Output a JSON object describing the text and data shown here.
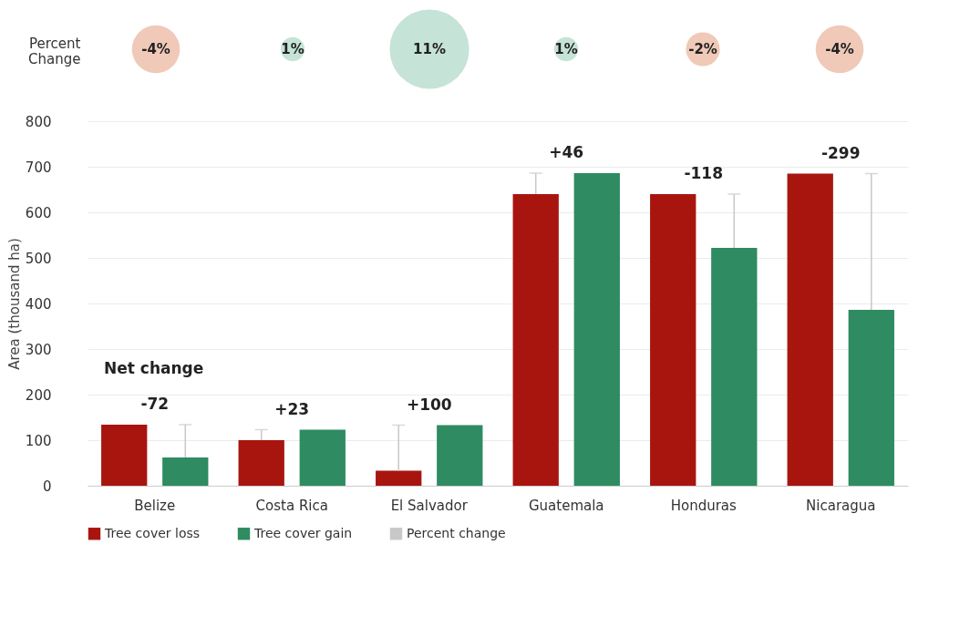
{
  "chart_data": [
    {
      "type": "other",
      "ylabel": "Percent Change",
      "categories": [
        null,
        null,
        null,
        null,
        null,
        null
      ],
      "series": [
        {
          "name": "Percent change",
          "color": "#c8c8c8",
          "values": [
            -4,
            1,
            11,
            1,
            -2,
            -4
          ],
          "colors": [
            "#f0c9b8",
            "#c5e3d6",
            "#c5e3d6",
            "#c5e3d6",
            "#f0c9b8",
            "#f0c9b8"
          ],
          "value_labels": [
            "-4%",
            "1%",
            "11%",
            "1%",
            "-2%",
            "-4%"
          ]
        }
      ],
      "legend": "bottom"
    },
    {
      "type": "bar",
      "ylabel": "Area (thousand ha)",
      "categories": [
        "Belize",
        "Costa Rica",
        "El Salvador",
        "Guatemala",
        "Honduras",
        "Nicaragua"
      ],
      "series": [
        {
          "name": "Tree cover loss",
          "color": "#a8150f",
          "values": [
            134,
            100,
            33,
            640,
            640,
            685
          ],
          "errors": [
            null,
            [
              100,
              123
            ],
            [
              33,
              133
            ],
            [
              640,
              686
            ],
            null,
            null
          ]
        },
        {
          "name": "Tree cover gain",
          "color": "#2e8b62",
          "values": [
            62,
            123,
            133,
            686,
            522,
            386
          ],
          "errors": [
            [
              62,
              134
            ],
            null,
            null,
            null,
            [
              522,
              640
            ],
            [
              386,
              685
            ]
          ]
        }
      ],
      "ylim": [
        0,
        800
      ],
      "yticks": [
        0,
        100,
        200,
        300,
        400,
        500,
        600,
        700,
        800
      ],
      "grid": "y",
      "legend": "bottom",
      "annotations": [
        "Net change",
        "-72",
        "+23",
        "+100",
        "+46",
        "-118",
        "-299"
      ]
    }
  ]
}
